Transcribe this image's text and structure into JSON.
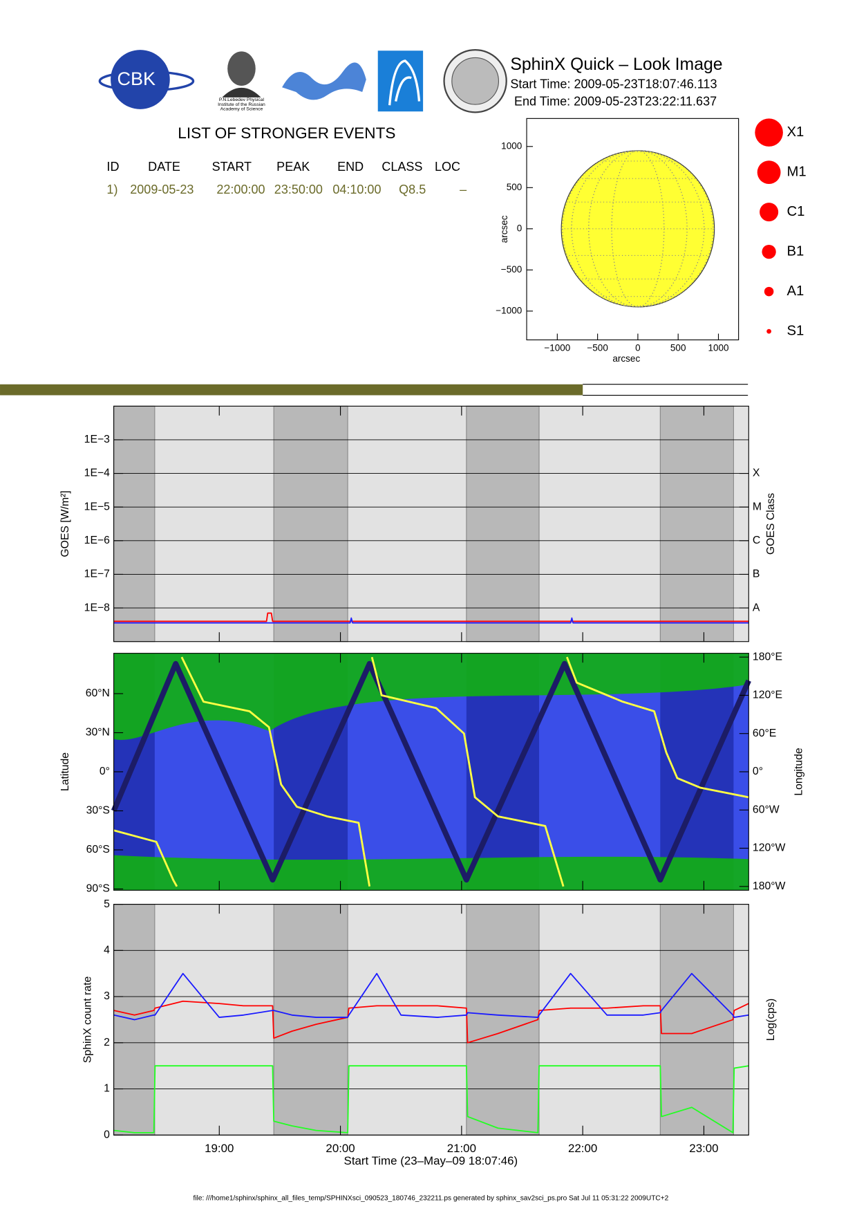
{
  "header": {
    "logo_text": "CBK",
    "lebedev_caption": [
      "P.N.Lebedev Physical",
      "Institute of the Russian",
      "Academy of Science"
    ],
    "title": "SphinX Quick – Look Image",
    "start_time": "Start Time: 2009-05-23T18:07:46.113",
    "end_time": "End Time: 2009-05-23T23:22:11.637"
  },
  "events": {
    "title": "LIST OF STRONGER EVENTS",
    "columns": [
      "ID",
      "DATE",
      "START",
      "PEAK",
      "END",
      "CLASS",
      "LOC"
    ],
    "rows": [
      [
        "1)",
        "2009-05-23",
        "22:00:00",
        "23:50:00",
        "04:10:00",
        "Q8.5",
        "–"
      ]
    ]
  },
  "class_legend": [
    "X1",
    "M1",
    "C1",
    "B1",
    "A1",
    "S1"
  ],
  "footer": "file: ///home1/sphinx/sphinx_all_files_temp/SPHINXsci_090523_180746_232211.ps generated by sphinx_sav2sci_ps.pro Sat Jul 11 05:31:22 2009UTC+2",
  "chart_data": [
    {
      "type": "disk",
      "xlabel": "arcsec",
      "ylabel": "arcsec",
      "xlim": [
        -1380,
        1250
      ],
      "ylim": [
        -1350,
        1340
      ],
      "xticks": [
        {
          "value": -1000,
          "label": "−1000"
        },
        {
          "value": -500,
          "label": "−500"
        },
        0,
        500,
        1000
      ],
      "yticks": [
        {
          "value": -1000,
          "label": "−1000"
        },
        {
          "value": -500,
          "label": "−500"
        },
        0,
        500,
        1000
      ],
      "radius": 950,
      "color": "#ffff33"
    },
    {
      "type": "log-line",
      "ylabel": "GOES [W/m²]",
      "y2label": "GOES Class",
      "log_y": true,
      "grid": true,
      "xlim": [
        18.129,
        23.37
      ],
      "ylim": [
        1e-09,
        0.01
      ],
      "yticks": [
        {
          "value": 1e-08,
          "label": "1E−8"
        },
        {
          "value": 1e-07,
          "label": "1E−7"
        },
        {
          "value": 1e-06,
          "label": "1E−6"
        },
        {
          "value": 1e-05,
          "label": "1E−5"
        },
        {
          "value": 0.0001,
          "label": "1E−4"
        },
        {
          "value": 0.001,
          "label": "1E−3"
        }
      ],
      "y2ticks": [
        {
          "value": 1e-08,
          "label": "A"
        },
        {
          "value": 1e-07,
          "label": "B"
        },
        {
          "value": 1e-06,
          "label": "C"
        },
        {
          "value": 1e-05,
          "label": "M"
        },
        {
          "value": 0.0001,
          "label": "X"
        }
      ],
      "night_intervals": [
        [
          18.129,
          18.467
        ],
        [
          19.45,
          20.06
        ],
        [
          21.04,
          21.64
        ],
        [
          22.64,
          23.245
        ]
      ],
      "series": [
        {
          "color": "#ff0000",
          "x": [
            18.129,
            19.39,
            19.4,
            19.43,
            19.44,
            23.37
          ],
          "values": [
            4e-09,
            4e-09,
            7e-09,
            7e-09,
            4e-09,
            4e-09
          ]
        },
        {
          "color": "#2222ff",
          "x": [
            18.129,
            20.08,
            20.09,
            20.1,
            21.9,
            21.91,
            21.92,
            23.37
          ],
          "values": [
            3.6e-09,
            3.6e-09,
            5e-09,
            3.6e-09,
            3.6e-09,
            5e-09,
            3.6e-09,
            3.6e-09
          ]
        }
      ]
    },
    {
      "type": "orbit",
      "ylabel": "Latitude",
      "y2label": "Longitude",
      "xlim": [
        18.129,
        23.37
      ],
      "ylim": [
        -91,
        91
      ],
      "y2lim": [
        -186,
        186
      ],
      "yticks": [
        {
          "value": -90,
          "label": "90°S"
        },
        {
          "value": -60,
          "label": "60°S"
        },
        {
          "value": -30,
          "label": "30°S"
        },
        {
          "value": 0,
          "label": "0°"
        },
        {
          "value": 30,
          "label": "30°N"
        },
        {
          "value": 60,
          "label": "60°N"
        }
      ],
      "y2ticks": [
        {
          "value": -180,
          "label": "180°W"
        },
        {
          "value": -120,
          "label": "120°W"
        },
        {
          "value": -60,
          "label": "60°W"
        },
        {
          "value": 0,
          "label": "0°"
        },
        {
          "value": 60,
          "label": "60°E"
        },
        {
          "value": 120,
          "label": "120°E"
        },
        {
          "value": 180,
          "label": "180°E"
        }
      ],
      "series": [
        {
          "color": "#1c1c66",
          "x": [
            18.129,
            18.64,
            19.44,
            20.24,
            21.04,
            21.85,
            22.64,
            23.37
          ],
          "values": [
            -30,
            83,
            -83,
            83,
            -83,
            83,
            -83,
            70
          ]
        },
        {
          "color": "#ffff44",
          "axis": "y2",
          "x": [
            18.13,
            18.48,
            18.62,
            18.65,
            18.66,
            18.69,
            18.87,
            19.25,
            19.41,
            19.51,
            19.64,
            19.89,
            20.15,
            20.24,
            20.25,
            20.26,
            20.34,
            20.79,
            21.02,
            21.11,
            21.3,
            21.69,
            21.84,
            21.86,
            21.87,
            21.95,
            22.33,
            22.59,
            22.69,
            22.78,
            22.97,
            23.37
          ],
          "values": [
            -92,
            -110,
            -170,
            -180,
            null,
            180,
            110,
            95,
            70,
            -20,
            -55,
            -70,
            -80,
            -180,
            null,
            180,
            120,
            100,
            60,
            -40,
            -70,
            -85,
            -180,
            null,
            180,
            140,
            110,
            95,
            30,
            -10,
            -25,
            -40
          ]
        }
      ]
    },
    {
      "type": "line",
      "ylabel": "SphinX count rate",
      "y2label": "Log(cps)",
      "xlabel": "Start Time (23–May–09 18:07:46)",
      "grid": true,
      "xlim": [
        18.129,
        23.37
      ],
      "ylim": [
        0,
        5
      ],
      "yticks": [
        0,
        1,
        2,
        3,
        4,
        5
      ],
      "xticks": [
        {
          "value": 19,
          "label": "19:00"
        },
        {
          "value": 20,
          "label": "20:00"
        },
        {
          "value": 21,
          "label": "21:00"
        },
        {
          "value": 22,
          "label": "22:00"
        },
        {
          "value": 23,
          "label": "23:00"
        }
      ],
      "series": [
        {
          "color": "#ff0000",
          "x": [
            18.13,
            18.3,
            18.46,
            18.47,
            18.7,
            19.0,
            19.2,
            19.44,
            19.45,
            19.6,
            19.8,
            20.06,
            20.07,
            20.3,
            20.5,
            20.8,
            21.04,
            21.05,
            21.3,
            21.63,
            21.64,
            21.9,
            22.2,
            22.5,
            22.64,
            22.65,
            22.9,
            23.24,
            23.25,
            23.37
          ],
          "values": [
            2.7,
            2.6,
            2.7,
            2.75,
            2.9,
            2.85,
            2.8,
            2.8,
            2.1,
            2.25,
            2.4,
            2.55,
            2.75,
            2.8,
            2.8,
            2.8,
            2.75,
            2.0,
            2.2,
            2.5,
            2.7,
            2.75,
            2.75,
            2.8,
            2.8,
            2.2,
            2.2,
            2.5,
            2.7,
            2.85
          ]
        },
        {
          "color": "#1a1aff",
          "x": [
            18.13,
            18.3,
            18.46,
            18.47,
            18.7,
            19.0,
            19.2,
            19.44,
            19.45,
            19.6,
            19.8,
            20.06,
            20.07,
            20.3,
            20.5,
            20.8,
            21.04,
            21.05,
            21.3,
            21.63,
            21.64,
            21.9,
            22.2,
            22.5,
            22.64,
            22.65,
            22.9,
            23.24,
            23.25,
            23.37
          ],
          "values": [
            2.6,
            2.5,
            2.6,
            2.6,
            3.5,
            2.55,
            2.6,
            2.7,
            2.7,
            2.6,
            2.55,
            2.55,
            2.6,
            3.5,
            2.6,
            2.55,
            2.6,
            2.65,
            2.6,
            2.55,
            2.6,
            3.5,
            2.6,
            2.6,
            2.65,
            2.7,
            3.5,
            2.6,
            2.55,
            2.6
          ]
        },
        {
          "color": "#22ff22",
          "x": [
            18.13,
            18.3,
            18.46,
            18.47,
            18.7,
            19.0,
            19.2,
            19.44,
            19.45,
            19.6,
            19.8,
            20.06,
            20.07,
            20.3,
            20.5,
            20.8,
            21.04,
            21.05,
            21.3,
            21.63,
            21.64,
            21.9,
            22.2,
            22.5,
            22.64,
            22.65,
            22.9,
            23.24,
            23.25,
            23.37
          ],
          "values": [
            0.1,
            0.05,
            0.05,
            1.5,
            1.5,
            1.5,
            1.5,
            1.5,
            0.3,
            0.2,
            0.1,
            0.05,
            1.5,
            1.5,
            1.5,
            1.5,
            1.5,
            0.4,
            0.15,
            0.05,
            1.5,
            1.5,
            1.5,
            1.5,
            1.5,
            0.4,
            0.6,
            0.05,
            1.45,
            1.5
          ]
        }
      ]
    }
  ]
}
